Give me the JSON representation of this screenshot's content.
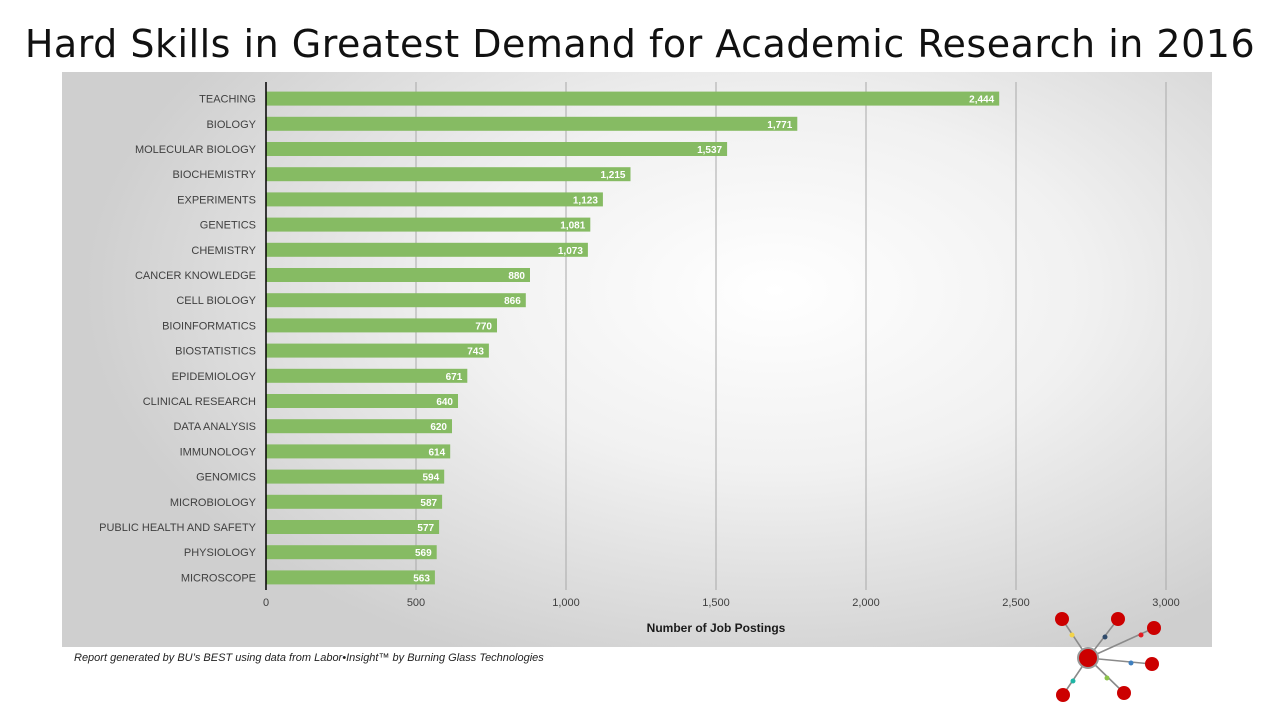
{
  "slide": {
    "title": "Hard Skills in Greatest Demand for Academic Research in 2016",
    "footnote": "Report generated by BU’s BEST using data from Labor•Insight™ by Burning Glass Technologies"
  },
  "logo": {
    "icon": "molecule-network-icon",
    "node_color": "#cc0000",
    "edge_color": "#888888"
  },
  "chart_data": {
    "type": "bar",
    "orientation": "horizontal",
    "title": "",
    "xlabel": "Number of Job Postings",
    "ylabel": "",
    "xlim": [
      0,
      3000
    ],
    "x_ticks": [
      0,
      500,
      1000,
      1500,
      2000,
      2500,
      3000
    ],
    "x_tick_labels": [
      "0",
      "500",
      "1,000",
      "1,500",
      "2,000",
      "2,500",
      "3,000"
    ],
    "grid": "vertical",
    "legend": "none",
    "bar_color": "#86bb63",
    "categories": [
      "TEACHING",
      "BIOLOGY",
      "MOLECULAR BIOLOGY",
      "BIOCHEMISTRY",
      "EXPERIMENTS",
      "GENETICS",
      "CHEMISTRY",
      "CANCER KNOWLEDGE",
      "CELL BIOLOGY",
      "BIOINFORMATICS",
      "BIOSTATISTICS",
      "EPIDEMIOLOGY",
      "CLINICAL RESEARCH",
      "DATA ANALYSIS",
      "IMMUNOLOGY",
      "GENOMICS",
      "MICROBIOLOGY",
      "PUBLIC HEALTH AND SAFETY",
      "PHYSIOLOGY",
      "MICROSCOPE"
    ],
    "values": [
      2444,
      1771,
      1537,
      1215,
      1123,
      1081,
      1073,
      880,
      866,
      770,
      743,
      671,
      640,
      620,
      614,
      594,
      587,
      577,
      569,
      563
    ],
    "data_labels": [
      "2,444",
      "1,771",
      "1,537",
      "1,215",
      "1,123",
      "1,081",
      "1,073",
      "880",
      "866",
      "770",
      "743",
      "671",
      "640",
      "620",
      "614",
      "594",
      "587",
      "577",
      "569",
      "563"
    ]
  }
}
